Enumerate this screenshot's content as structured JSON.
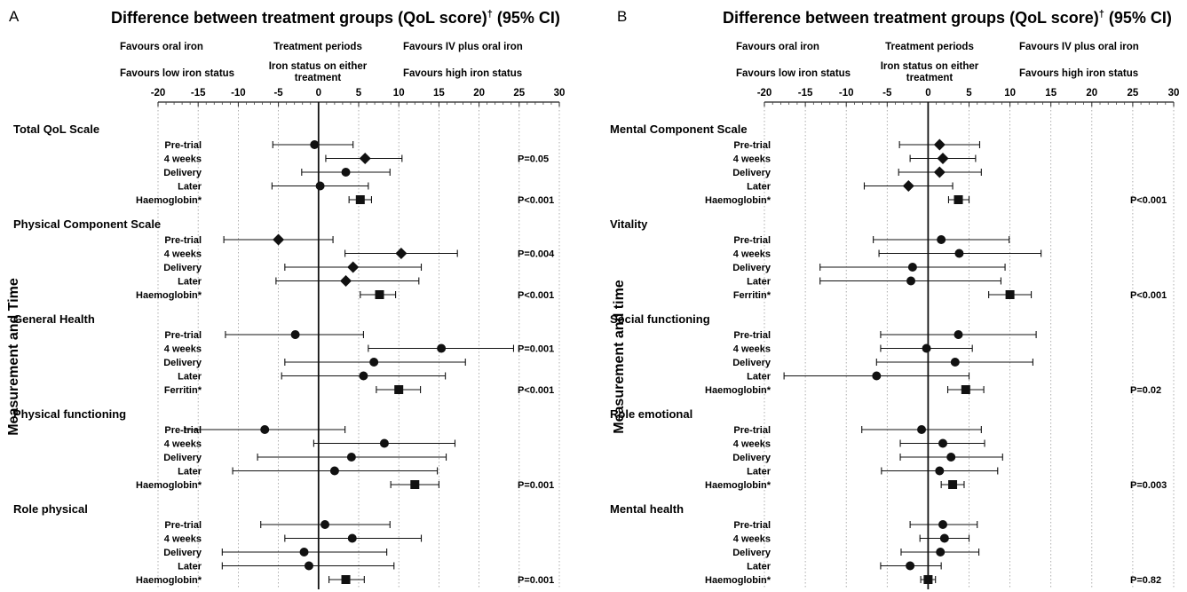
{
  "chart_data": [
    {
      "type": "forest",
      "panel_letter": "A",
      "title": "Difference between treatment groups (QoL score)",
      "title_sup": "†",
      "title_suffix": " (95% CI)",
      "ylabel": "Measurement and Time",
      "header_lines": [
        [
          "Favours oral iron",
          "Treatment periods",
          "Favours IV plus oral iron"
        ],
        [
          "Favours low iron status",
          "Iron status on either treatment",
          "Favours high iron status"
        ]
      ],
      "xlim": [
        -20,
        30
      ],
      "xticks": [
        -20,
        -15,
        -10,
        -5,
        0,
        5,
        10,
        15,
        20,
        25,
        30
      ],
      "grid": true,
      "groups": [
        {
          "name": "Total QoL Scale",
          "rows": [
            {
              "label": "Pre-trial",
              "est": -0.5,
              "lo": -5.7,
              "hi": 4.3,
              "marker": "circle",
              "p": ""
            },
            {
              "label": "4 weeks",
              "est": 5.8,
              "lo": 0.9,
              "hi": 10.4,
              "marker": "diamond",
              "p": "P=0.05"
            },
            {
              "label": "Delivery",
              "est": 3.4,
              "lo": -2.1,
              "hi": 8.9,
              "marker": "circle",
              "p": ""
            },
            {
              "label": "Later",
              "est": 0.2,
              "lo": -5.8,
              "hi": 6.2,
              "marker": "circle",
              "p": ""
            },
            {
              "label": "Haemoglobin*",
              "est": 5.2,
              "lo": 3.8,
              "hi": 6.6,
              "marker": "square",
              "p": "P<0.001"
            }
          ]
        },
        {
          "name": "Physical Component Scale",
          "rows": [
            {
              "label": "Pre-trial",
              "est": -5.0,
              "lo": -11.8,
              "hi": 1.8,
              "marker": "diamond",
              "p": ""
            },
            {
              "label": "4 weeks",
              "est": 10.3,
              "lo": 3.3,
              "hi": 17.3,
              "marker": "diamond",
              "p": "P=0.004"
            },
            {
              "label": "Delivery",
              "est": 4.3,
              "lo": -4.2,
              "hi": 12.8,
              "marker": "diamond",
              "p": ""
            },
            {
              "label": "Later",
              "est": 3.4,
              "lo": -5.3,
              "hi": 12.5,
              "marker": "diamond",
              "p": ""
            },
            {
              "label": "Haemoglobin*",
              "est": 7.6,
              "lo": 5.2,
              "hi": 9.6,
              "marker": "square",
              "p": "P<0.001"
            }
          ]
        },
        {
          "name": "General Health",
          "rows": [
            {
              "label": "Pre-trial",
              "est": -2.9,
              "lo": -11.6,
              "hi": 5.6,
              "marker": "circle",
              "p": ""
            },
            {
              "label": "4 weeks",
              "est": 15.3,
              "lo": 6.2,
              "hi": 24.3,
              "marker": "circle",
              "p": "P=0.001"
            },
            {
              "label": "Delivery",
              "est": 6.9,
              "lo": -4.2,
              "hi": 18.3,
              "marker": "circle",
              "p": ""
            },
            {
              "label": "Later",
              "est": 5.6,
              "lo": -4.6,
              "hi": 15.8,
              "marker": "circle",
              "p": ""
            },
            {
              "label": "Ferritin*",
              "est": 10.0,
              "lo": 7.2,
              "hi": 12.7,
              "marker": "square",
              "p": "P<0.001"
            }
          ]
        },
        {
          "name": "Physical functioning",
          "rows": [
            {
              "label": "Pre-trial",
              "est": -6.7,
              "lo": -16.7,
              "hi": 3.3,
              "marker": "circle",
              "p": ""
            },
            {
              "label": "4 weeks",
              "est": 8.2,
              "lo": -0.6,
              "hi": 17.0,
              "marker": "circle",
              "p": ""
            },
            {
              "label": "Delivery",
              "est": 4.1,
              "lo": -7.6,
              "hi": 15.9,
              "marker": "circle",
              "p": ""
            },
            {
              "label": "Later",
              "est": 2.0,
              "lo": -10.7,
              "hi": 14.8,
              "marker": "circle",
              "p": ""
            },
            {
              "label": "Haemoglobin*",
              "est": 12.0,
              "lo": 9.0,
              "hi": 15.0,
              "marker": "square",
              "p": "P=0.001"
            }
          ]
        },
        {
          "name": "Role physical",
          "rows": [
            {
              "label": "Pre-trial",
              "est": 0.8,
              "lo": -7.2,
              "hi": 8.9,
              "marker": "circle",
              "p": ""
            },
            {
              "label": "4 weeks",
              "est": 4.2,
              "lo": -4.2,
              "hi": 12.8,
              "marker": "circle",
              "p": ""
            },
            {
              "label": "Delivery",
              "est": -1.8,
              "lo": -12.0,
              "hi": 8.5,
              "marker": "circle",
              "p": ""
            },
            {
              "label": "Later",
              "est": -1.2,
              "lo": -12.0,
              "hi": 9.4,
              "marker": "circle",
              "p": ""
            },
            {
              "label": "Haemoglobin*",
              "est": 3.4,
              "lo": 1.3,
              "hi": 5.7,
              "marker": "square",
              "p": "P=0.001"
            }
          ]
        }
      ]
    },
    {
      "type": "forest",
      "panel_letter": "B",
      "title": "Difference between treatment groups (QoL score)",
      "title_sup": "†",
      "title_suffix": " (95% CI)",
      "ylabel": "Measurement and time",
      "header_lines": [
        [
          "Favours oral iron",
          "Treatment periods",
          "Favours IV plus oral iron"
        ],
        [
          "Favours low iron status",
          "Iron status on either treatment",
          "Favours high iron status"
        ]
      ],
      "xlim": [
        -20,
        30
      ],
      "xticks": [
        -20,
        -15,
        -10,
        -5,
        0,
        5,
        10,
        15,
        20,
        25,
        30
      ],
      "grid": true,
      "groups": [
        {
          "name": "Mental Component Scale",
          "rows": [
            {
              "label": "Pre-trial",
              "est": 1.4,
              "lo": -3.5,
              "hi": 6.3,
              "marker": "diamond",
              "p": ""
            },
            {
              "label": "4 weeks",
              "est": 1.8,
              "lo": -2.2,
              "hi": 5.8,
              "marker": "diamond",
              "p": ""
            },
            {
              "label": "Delivery",
              "est": 1.4,
              "lo": -3.6,
              "hi": 6.5,
              "marker": "diamond",
              "p": ""
            },
            {
              "label": "Later",
              "est": -2.4,
              "lo": -7.8,
              "hi": 3.0,
              "marker": "diamond",
              "p": ""
            },
            {
              "label": "Haemoglobin*",
              "est": 3.7,
              "lo": 2.5,
              "hi": 5.0,
              "marker": "square",
              "p": "P<0.001"
            }
          ]
        },
        {
          "name": "Vitality",
          "rows": [
            {
              "label": "Pre-trial",
              "est": 1.6,
              "lo": -6.7,
              "hi": 9.9,
              "marker": "circle",
              "p": ""
            },
            {
              "label": "4 weeks",
              "est": 3.8,
              "lo": -6.0,
              "hi": 13.8,
              "marker": "circle",
              "p": ""
            },
            {
              "label": "Delivery",
              "est": -1.9,
              "lo": -13.2,
              "hi": 9.4,
              "marker": "circle",
              "p": ""
            },
            {
              "label": "Later",
              "est": -2.1,
              "lo": -13.2,
              "hi": 8.9,
              "marker": "circle",
              "p": ""
            },
            {
              "label": "Ferritin*",
              "est": 10.0,
              "lo": 7.4,
              "hi": 12.6,
              "marker": "square",
              "p": "P<0.001"
            }
          ]
        },
        {
          "name": "Social functioning",
          "rows": [
            {
              "label": "Pre-trial",
              "est": 3.7,
              "lo": -5.8,
              "hi": 13.2,
              "marker": "circle",
              "p": ""
            },
            {
              "label": "4 weeks",
              "est": -0.2,
              "lo": -5.8,
              "hi": 5.4,
              "marker": "circle",
              "p": ""
            },
            {
              "label": "Delivery",
              "est": 3.3,
              "lo": -6.3,
              "hi": 12.8,
              "marker": "circle",
              "p": ""
            },
            {
              "label": "Later",
              "est": -6.3,
              "lo": -17.6,
              "hi": 5.0,
              "marker": "circle",
              "p": ""
            },
            {
              "label": "Haemoglobin*",
              "est": 4.6,
              "lo": 2.4,
              "hi": 6.8,
              "marker": "square",
              "p": "P=0.02"
            }
          ]
        },
        {
          "name": "Role emotional",
          "rows": [
            {
              "label": "Pre-trial",
              "est": -0.8,
              "lo": -8.1,
              "hi": 6.5,
              "marker": "circle",
              "p": ""
            },
            {
              "label": "4 weeks",
              "est": 1.8,
              "lo": -3.4,
              "hi": 6.9,
              "marker": "circle",
              "p": ""
            },
            {
              "label": "Delivery",
              "est": 2.8,
              "lo": -3.4,
              "hi": 9.1,
              "marker": "circle",
              "p": ""
            },
            {
              "label": "Later",
              "est": 1.4,
              "lo": -5.7,
              "hi": 8.5,
              "marker": "circle",
              "p": ""
            },
            {
              "label": "Haemoglobin*",
              "est": 3.0,
              "lo": 1.6,
              "hi": 4.4,
              "marker": "square",
              "p": "P=0.003"
            }
          ]
        },
        {
          "name": "Mental health",
          "rows": [
            {
              "label": "Pre-trial",
              "est": 1.8,
              "lo": -2.2,
              "hi": 6.0,
              "marker": "circle",
              "p": ""
            },
            {
              "label": "4 weeks",
              "est": 2.0,
              "lo": -1.0,
              "hi": 5.0,
              "marker": "circle",
              "p": ""
            },
            {
              "label": "Delivery",
              "est": 1.5,
              "lo": -3.3,
              "hi": 6.2,
              "marker": "circle",
              "p": ""
            },
            {
              "label": "Later",
              "est": -2.2,
              "lo": -5.8,
              "hi": 1.6,
              "marker": "circle",
              "p": ""
            },
            {
              "label": "Haemoglobin*",
              "est": 0.0,
              "lo": -0.9,
              "hi": 0.9,
              "marker": "square",
              "p": "P=0.82"
            }
          ]
        }
      ]
    }
  ]
}
